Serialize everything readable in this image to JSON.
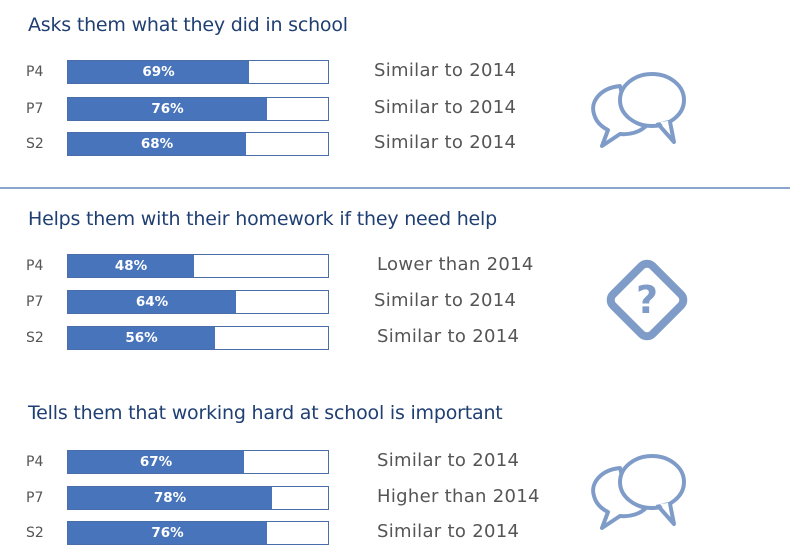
{
  "chart_data": [
    {
      "type": "bar",
      "title": "Asks them what they did in school",
      "categories": [
        "P4",
        "P7",
        "S2"
      ],
      "values": [
        69,
        76,
        68
      ],
      "value_labels": [
        "69%",
        "76%",
        "68%"
      ],
      "comparisons": [
        "Similar to 2014",
        "Similar to 2014",
        "Similar to 2014"
      ],
      "ylim": [
        0,
        100
      ],
      "icon": "speech-bubbles-icon"
    },
    {
      "type": "bar",
      "title": "Helps them with their homework if they need help",
      "categories": [
        "P4",
        "P7",
        "S2"
      ],
      "values": [
        48,
        64,
        56
      ],
      "value_labels": [
        "48%",
        "64%",
        "56%"
      ],
      "comparisons": [
        "Lower than 2014",
        "Similar to 2014",
        "Similar to 2014"
      ],
      "ylim": [
        0,
        100
      ],
      "icon": "question-diamond-icon"
    },
    {
      "type": "bar",
      "title": "Tells them that working hard at school is important",
      "categories": [
        "P4",
        "P7",
        "S2"
      ],
      "values": [
        67,
        78,
        76
      ],
      "value_labels": [
        "67%",
        "78%",
        "76%"
      ],
      "comparisons": [
        "Similar to 2014",
        "Higher than 2014",
        "Similar to 2014"
      ],
      "ylim": [
        0,
        100
      ],
      "icon": "speech-bubbles-icon"
    }
  ],
  "colors": {
    "bar_fill": "#4874bb",
    "bar_border": "#4a6fa8",
    "title": "#1f3f73",
    "icon": "#7f9cc9",
    "divider": "#8aa6cf"
  }
}
